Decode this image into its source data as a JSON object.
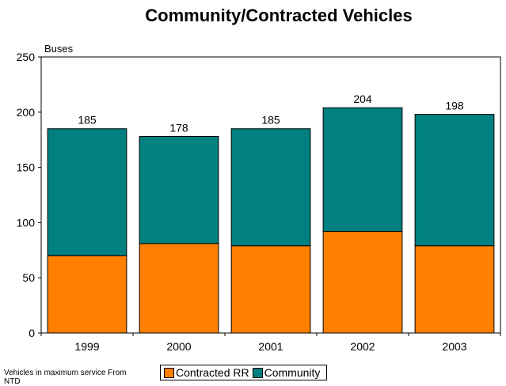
{
  "chart_data": {
    "type": "bar",
    "stacked": true,
    "title": "Community/Contracted Vehicles",
    "ylabel": "Buses",
    "xlabel": "",
    "categories": [
      "1999",
      "2000",
      "2001",
      "2002",
      "2003"
    ],
    "series": [
      {
        "name": "Contracted RR",
        "values": [
          70,
          81,
          79,
          92,
          79
        ],
        "color": "#ff8000"
      },
      {
        "name": "Community",
        "values": [
          115,
          97,
          106,
          112,
          119
        ],
        "color": "#008080"
      }
    ],
    "totals": [
      185,
      178,
      185,
      204,
      198
    ],
    "ylim": [
      0,
      250
    ],
    "yticks": [
      0,
      50,
      100,
      150,
      200,
      250
    ],
    "grid": false,
    "legend": "bottom-center"
  },
  "footnote": "Vehicles in maximum service From NTD"
}
